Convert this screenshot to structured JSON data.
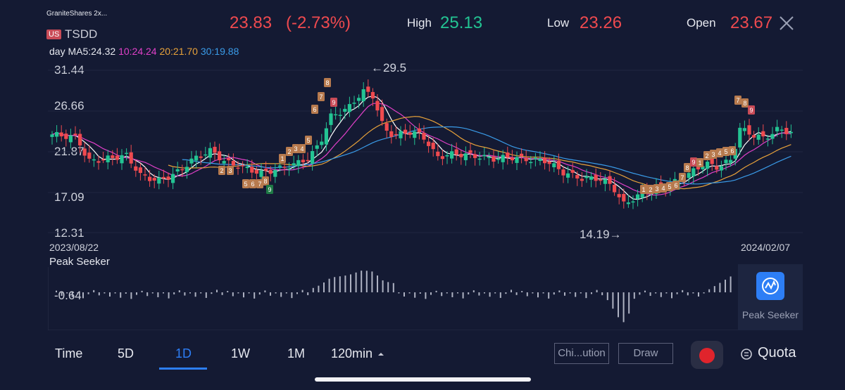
{
  "header": {
    "company": "GraniteShares 2x...",
    "market_badge": "US",
    "ticker": "TSDD",
    "price": "23.83",
    "change": "(-2.73%)",
    "high_label": "High",
    "high_value": "25.13",
    "low_label": "Low",
    "low_value": "23.26",
    "open_label": "Open",
    "open_value": "23.67"
  },
  "ma_bar": {
    "period": "day",
    "ma5": "MA5:24.32",
    "ma10": "10:24.24",
    "ma20": "20:21.70",
    "ma30": "30:19.88"
  },
  "chart_data": {
    "type": "candlestick",
    "y_ticks": [
      "31.44",
      "26.66",
      "21.87",
      "17.09",
      "12.31"
    ],
    "ylim": [
      12.31,
      31.44
    ],
    "start_date": "2023/08/22",
    "end_date": "2024/02/07",
    "high_annotation": "←29.5",
    "low_annotation": "14.19→",
    "series": [
      {
        "name": "MA5",
        "color": "#ffffff"
      },
      {
        "name": "MA10",
        "color": "#e040c8"
      },
      {
        "name": "MA20",
        "color": "#e8a23a"
      },
      {
        "name": "MA30",
        "color": "#3a9be8"
      }
    ]
  },
  "indicator": {
    "name": "Peak Seeker",
    "value": "-0.64",
    "button_label": "Peak Seeker"
  },
  "toolbar": {
    "tabs": [
      "Time",
      "5D",
      "1D",
      "1W",
      "1M",
      "120min"
    ],
    "active_tab": "1D",
    "chip_label": "Chi...ution",
    "draw_label": "Draw",
    "quota_label": "Quota"
  },
  "colors": {
    "up": "#23c493",
    "down": "#ef4a4f",
    "accent": "#2d7ef5",
    "background": "#141a33"
  }
}
